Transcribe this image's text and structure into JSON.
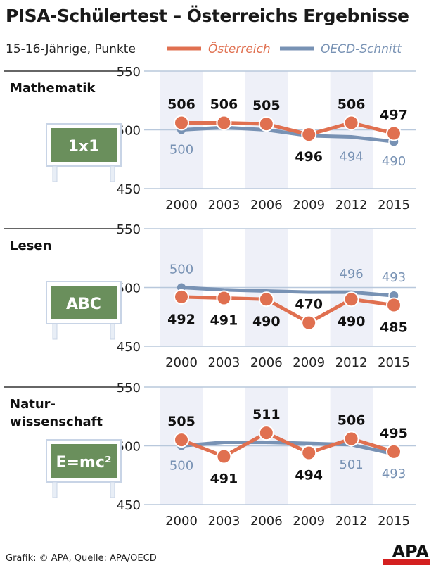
{
  "title": "PISA-Schülertest – Österreichs Ergebnisse",
  "subtitle": "15-16-Jährige, Punkte",
  "source": "Grafik: © APA, Quelle: APA/OECD",
  "logo": "APA",
  "colors": {
    "austria": "#e07050",
    "oecd": "#7892b4",
    "band": "#eef0f8",
    "board": "#6a8f5c"
  },
  "chart_data": [
    {
      "type": "line",
      "title": "Mathematik",
      "title_lines": [
        "Mathematik"
      ],
      "board_label": "1x1",
      "x": [
        "2000",
        "2003",
        "2006",
        "2009",
        "2012",
        "2015"
      ],
      "ylim": [
        450,
        550
      ],
      "yticks": [
        "450",
        "500",
        "550"
      ],
      "series": [
        {
          "name": "Österreich",
          "values": [
            506,
            506,
            505,
            496,
            506,
            497
          ],
          "labels": [
            "506",
            "506",
            "505",
            "496",
            "506",
            "497"
          ]
        },
        {
          "name": "OECD-Schnitt",
          "values": [
            500,
            502,
            500,
            495,
            494,
            490
          ],
          "labels": [
            "500",
            "",
            "",
            "",
            "494",
            "490"
          ]
        }
      ]
    },
    {
      "type": "line",
      "title": "Lesen",
      "title_lines": [
        "Lesen"
      ],
      "board_label": "ABC",
      "x": [
        "2000",
        "2003",
        "2006",
        "2009",
        "2012",
        "2015"
      ],
      "ylim": [
        450,
        550
      ],
      "yticks": [
        "450",
        "500",
        "550"
      ],
      "series": [
        {
          "name": "Österreich",
          "values": [
            492,
            491,
            490,
            470,
            490,
            485
          ],
          "labels": [
            "492",
            "491",
            "490",
            "470",
            "490",
            "485"
          ]
        },
        {
          "name": "OECD-Schnitt",
          "values": [
            500,
            498,
            497,
            496,
            496,
            493
          ],
          "labels": [
            "500",
            "",
            "",
            "",
            "496",
            "493"
          ]
        }
      ]
    },
    {
      "type": "line",
      "title": "Naturwissenschaft",
      "title_lines": [
        "Natur-",
        "wissenschaft"
      ],
      "board_label": "E=mc²",
      "x": [
        "2000",
        "2003",
        "2006",
        "2009",
        "2012",
        "2015"
      ],
      "ylim": [
        450,
        550
      ],
      "yticks": [
        "450",
        "500",
        "550"
      ],
      "series": [
        {
          "name": "Österreich",
          "values": [
            505,
            491,
            511,
            494,
            506,
            495
          ],
          "labels": [
            "505",
            "491",
            "511",
            "494",
            "506",
            "495"
          ]
        },
        {
          "name": "OECD-Schnitt",
          "values": [
            500,
            503,
            503,
            502,
            501,
            493
          ],
          "labels": [
            "500",
            "",
            "",
            "",
            "501",
            "493"
          ]
        }
      ]
    }
  ]
}
